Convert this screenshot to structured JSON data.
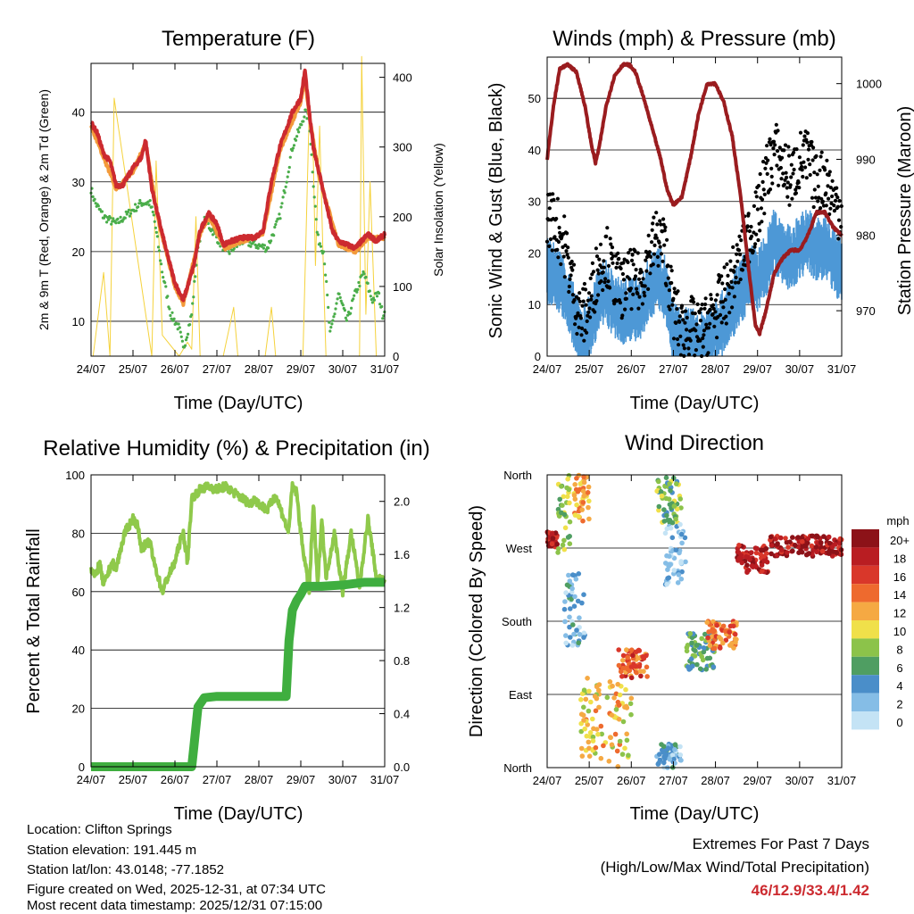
{
  "info": {
    "location": "Location: Clifton Springs",
    "elevation": "Station elevation: 191.445 m",
    "latlon": "Station lat/lon: 43.0148; -77.1852",
    "created": "Figure created on Wed, 2025-12-31, at 07:34 UTC",
    "latest": "Most recent data timestamp: 2025/12/31 07:15:00"
  },
  "extremes": {
    "heading": "Extremes For Past 7 Days",
    "subheading": "(High/Low/Max Wind/Total Precipitation)",
    "values": "46/12.9/33.4/1.42"
  },
  "colors": {
    "temp_2m": "#cc2a2f",
    "temp_9m": "#f39a3a",
    "dewpoint": "#4aad4a",
    "insolation": "#f5d23c",
    "wind": "#4d98d6",
    "gust": "#000000",
    "pressure": "#9a1c1f",
    "rh": "#8fc94b",
    "precip": "#3fae3f"
  },
  "chart_data": [
    {
      "type": "line",
      "title": "Temperature (F)",
      "xlabel": "Time (Day/UTC)",
      "ylabel": "2m & 9m T (Red, Orange) & 2m Td (Green)",
      "y2label": "Solar Insolation (Yellow)",
      "xticks": [
        "24/07",
        "25/07",
        "26/07",
        "27/07",
        "28/07",
        "29/07",
        "30/07",
        "31/07"
      ],
      "xlim": [
        0,
        7
      ],
      "ylim": [
        5,
        47
      ],
      "yticks": [
        10,
        20,
        30,
        40
      ],
      "y2lim": [
        0,
        420
      ],
      "y2ticks": [
        0,
        100,
        200,
        300,
        400
      ],
      "series": [
        {
          "name": "2m T",
          "x": [
            0,
            0.15,
            0.3,
            0.45,
            0.6,
            0.75,
            1.0,
            1.2,
            1.3,
            1.45,
            1.6,
            1.8,
            2.0,
            2.2,
            2.45,
            2.6,
            2.8,
            3.0,
            3.15,
            3.35,
            3.6,
            3.9,
            4.1,
            4.3,
            4.5,
            4.8,
            5.0,
            5.1,
            5.2,
            5.3,
            5.45,
            5.6,
            5.75,
            5.9,
            6.1,
            6.3,
            6.6,
            6.8,
            7.0
          ],
          "values": [
            38.5,
            37,
            34,
            33,
            29.5,
            29.5,
            32,
            33.5,
            36,
            29,
            25,
            20,
            15.5,
            13,
            18,
            23,
            25.5,
            24,
            21,
            21.5,
            22,
            22,
            23,
            30,
            35,
            40,
            42,
            46,
            40,
            35,
            31,
            27,
            23,
            21.5,
            21,
            20.5,
            22.5,
            21.5,
            22.5
          ]
        },
        {
          "name": "9m T",
          "x": [
            0,
            0.3,
            0.6,
            1.0,
            1.3,
            1.6,
            2.0,
            2.2,
            2.6,
            2.8,
            3.2,
            3.6,
            4.1,
            4.5,
            5.0,
            5.1,
            5.2,
            5.45,
            5.9,
            6.3,
            6.6,
            7.0
          ],
          "values": [
            38,
            33.5,
            29,
            31.5,
            35.5,
            24.5,
            15,
            12.5,
            22.5,
            25,
            20.5,
            21.5,
            22.5,
            34.5,
            41.5,
            45,
            39.5,
            30.5,
            21,
            20,
            22,
            22
          ]
        },
        {
          "name": "2m Td",
          "x": [
            0,
            0.1,
            0.3,
            0.6,
            0.8,
            1.0,
            1.2,
            1.4,
            1.5,
            1.7,
            1.9,
            2.1,
            2.2,
            2.4,
            2.55,
            2.7,
            2.9,
            3.1,
            3.3,
            3.6,
            3.9,
            4.2,
            4.5,
            4.8,
            5.0,
            5.1,
            5.2,
            5.3,
            5.4,
            5.55,
            5.7,
            5.9,
            6.1,
            6.3,
            6.5,
            6.7,
            6.85,
            6.95,
            7.0
          ],
          "values": [
            29,
            27,
            25,
            24,
            25,
            26,
            27,
            27,
            25,
            17,
            11,
            9,
            6,
            11,
            21,
            24.5,
            23,
            21,
            20,
            21.5,
            21,
            20.5,
            25,
            35,
            38,
            40,
            39,
            30,
            22,
            20,
            8,
            14,
            10,
            14,
            17,
            13,
            14,
            11,
            11.5
          ]
        }
      ],
      "insolation": {
        "x": [
          0.05,
          0.3,
          0.45,
          0.55,
          1.45,
          1.55,
          1.7,
          2.1,
          2.3,
          2.4,
          2.5,
          2.6,
          3.15,
          3.4,
          3.5,
          4.15,
          4.3,
          4.4,
          5.05,
          5.2,
          5.3,
          5.35,
          5.45,
          5.55,
          5.6,
          6.1,
          6.4,
          6.45,
          6.55,
          6.65,
          6.8
        ],
        "values": [
          0,
          120,
          0,
          370,
          0,
          280,
          30,
          0,
          20,
          10,
          200,
          0,
          0,
          70,
          0,
          0,
          70,
          0,
          0,
          350,
          280,
          130,
          330,
          100,
          0,
          0,
          0,
          430,
          60,
          250,
          0
        ]
      }
    },
    {
      "type": "scatter",
      "title": "Winds (mph) & Pressure (mb)",
      "xlabel": "Time (Day/UTC)",
      "ylabel": "Sonic Wind & Gust (Blue, Black)",
      "y2label": "Station Pressure (Maroon)",
      "xticks": [
        "24/07",
        "25/07",
        "26/07",
        "27/07",
        "28/07",
        "29/07",
        "30/07",
        "31/07"
      ],
      "xlim": [
        0,
        7
      ],
      "ylim": [
        0,
        58
      ],
      "yticks": [
        0,
        10,
        20,
        30,
        40,
        50
      ],
      "y2lim": [
        964,
        1003.5
      ],
      "y2ticks": [
        970,
        980,
        990,
        1000
      ],
      "series": [
        {
          "name": "Wind",
          "x": [
            0,
            0.2,
            0.4,
            0.6,
            0.8,
            1.0,
            1.2,
            1.4,
            1.6,
            1.8,
            2.0,
            2.2,
            2.4,
            2.6,
            2.8,
            3.0,
            3.2,
            3.4,
            3.6,
            3.8,
            4.0,
            4.2,
            4.4,
            4.6,
            4.8,
            5.0,
            5.2,
            5.4,
            5.6,
            5.8,
            6.0,
            6.2,
            6.4,
            6.6,
            6.8,
            7.0
          ],
          "values": [
            17,
            16,
            14,
            9,
            4,
            6,
            11,
            13,
            10,
            9,
            10,
            9,
            13,
            16,
            14,
            5,
            3,
            4,
            2,
            4,
            6,
            7,
            10,
            13,
            16,
            15,
            18,
            23,
            21,
            19,
            22,
            23,
            21,
            22,
            19,
            17
          ]
        },
        {
          "name": "Gust",
          "x": [
            0,
            0.2,
            0.4,
            0.6,
            0.8,
            1.0,
            1.2,
            1.4,
            1.6,
            1.8,
            2.0,
            2.2,
            2.4,
            2.6,
            2.8,
            3.0,
            3.2,
            3.4,
            3.6,
            3.8,
            4.0,
            4.2,
            4.4,
            4.6,
            4.8,
            5.0,
            5.2,
            5.4,
            5.6,
            5.8,
            6.0,
            6.2,
            6.4,
            6.6,
            6.8,
            7.0
          ],
          "values": [
            27,
            26,
            22,
            14,
            7,
            10,
            17,
            20,
            15,
            13,
            15,
            14,
            19,
            23,
            21,
            9,
            5,
            6,
            4,
            6,
            9,
            11,
            15,
            19,
            24,
            27,
            35,
            40,
            37,
            34,
            38,
            38,
            33,
            35,
            30,
            28
          ]
        },
        {
          "name": "Pressure",
          "x": [
            0,
            0.15,
            0.3,
            0.5,
            0.7,
            0.9,
            1.05,
            1.15,
            1.25,
            1.4,
            1.6,
            1.8,
            1.95,
            2.1,
            2.3,
            2.5,
            2.7,
            2.85,
            3.0,
            3.2,
            3.4,
            3.6,
            3.8,
            4.0,
            4.2,
            4.4,
            4.6,
            4.8,
            4.95,
            5.05,
            5.2,
            5.4,
            5.6,
            5.8,
            6.0,
            6.2,
            6.4,
            6.6,
            6.8,
            7.0
          ],
          "values": [
            990,
            997,
            1002,
            1002.5,
            1001.5,
            997,
            992,
            989.5,
            992,
            997,
            1001,
            1002.5,
            1002.5,
            1001.5,
            998,
            994,
            990,
            986,
            984,
            985,
            990,
            996,
            1000,
            1000,
            997.5,
            993,
            985,
            975,
            968,
            967,
            970,
            975,
            977,
            978,
            978,
            980,
            983,
            983,
            981,
            980
          ]
        }
      ]
    },
    {
      "type": "line",
      "title": "Relative Humidity (%) & Precipitation (in)",
      "xlabel": "Time (Day/UTC)",
      "ylabel": "Percent & Total Rainfall",
      "xticks": [
        "24/07",
        "25/07",
        "26/07",
        "27/07",
        "28/07",
        "29/07",
        "30/07",
        "31/07"
      ],
      "xlim": [
        0,
        7
      ],
      "ylim": [
        0,
        100
      ],
      "yticks": [
        0,
        20,
        40,
        60,
        80,
        100
      ],
      "y2lim": [
        0,
        2.2
      ],
      "y2ticks": [
        "0.0",
        "0.4",
        "0.8",
        "1.2",
        "1.6",
        "2.0"
      ],
      "series": [
        {
          "name": "RH",
          "x": [
            0,
            0.1,
            0.2,
            0.3,
            0.5,
            0.6,
            0.8,
            1.0,
            1.1,
            1.2,
            1.4,
            1.5,
            1.7,
            1.8,
            2.0,
            2.1,
            2.2,
            2.3,
            2.4,
            2.6,
            2.8,
            3.0,
            3.2,
            3.4,
            3.6,
            3.8,
            3.9,
            4.0,
            4.2,
            4.4,
            4.6,
            4.7,
            4.8,
            4.9,
            5.0,
            5.1,
            5.2,
            5.3,
            5.4,
            5.5,
            5.6,
            5.8,
            6.0,
            6.2,
            6.4,
            6.6,
            6.8,
            7.0
          ],
          "values": [
            68,
            65,
            70,
            62,
            70,
            68,
            80,
            85,
            83,
            75,
            77,
            70,
            60,
            64,
            70,
            76,
            80,
            70,
            92,
            95,
            96,
            95,
            96,
            94,
            92,
            90,
            92,
            90,
            88,
            93,
            85,
            80,
            96,
            94,
            80,
            70,
            60,
            90,
            62,
            85,
            65,
            80,
            60,
            80,
            62,
            85,
            65,
            64
          ]
        },
        {
          "name": "Precip",
          "x": [
            0,
            1.0,
            2.0,
            2.4,
            2.45,
            2.55,
            2.7,
            3.0,
            3.5,
            4.0,
            4.5,
            4.65,
            4.72,
            4.8,
            4.9,
            5.0,
            5.1,
            5.5,
            6.0,
            6.5,
            7.0
          ],
          "values": [
            0,
            0,
            0,
            0,
            0.15,
            0.45,
            0.52,
            0.53,
            0.53,
            0.53,
            0.53,
            0.53,
            0.95,
            1.18,
            1.25,
            1.3,
            1.36,
            1.36,
            1.37,
            1.39,
            1.39
          ]
        }
      ]
    },
    {
      "type": "scatter",
      "title": "Wind Direction",
      "xlabel": "Time (Day/UTC)",
      "ylabel": "Direction (Colored By Speed)",
      "xticks": [
        "24/07",
        "25/07",
        "26/07",
        "27/07",
        "28/07",
        "29/07",
        "30/07",
        "31/07"
      ],
      "xlim": [
        0,
        7
      ],
      "ylim": [
        0,
        360
      ],
      "yticks": [
        "North",
        "East",
        "South",
        "West",
        "North"
      ],
      "legend": {
        "title": "mph",
        "labels": [
          "0",
          "2",
          "4",
          "6",
          "8",
          "10",
          "12",
          "14",
          "16",
          "18",
          "20+"
        ],
        "colors": [
          "#c4e3f5",
          "#85bde6",
          "#4a8ec9",
          "#4f9e62",
          "#8cc34a",
          "#f0e04a",
          "#f5a943",
          "#ee6a2e",
          "#d9372a",
          "#b91d22",
          "#8c1218"
        ]
      },
      "clusters": [
        {
          "x_range": [
            0,
            0.25
          ],
          "dir_range": [
            270,
            290
          ],
          "speed": 18
        },
        {
          "x_range": [
            0.25,
            0.55
          ],
          "dir_range": [
            250,
            360
          ],
          "speed": 8
        },
        {
          "x_range": [
            0.6,
            1.0
          ],
          "dir_range": [
            300,
            360
          ],
          "speed": 12
        },
        {
          "x_range": [
            0.4,
            0.9
          ],
          "dir_range": [
            150,
            240
          ],
          "speed": 3
        },
        {
          "x_range": [
            0.8,
            2.0
          ],
          "dir_range": [
            0,
            110
          ],
          "speed": 11
        },
        {
          "x_range": [
            1.7,
            2.4
          ],
          "dir_range": [
            110,
            145
          ],
          "speed": 15
        },
        {
          "x_range": [
            2.6,
            3.2
          ],
          "dir_range": [
            300,
            360
          ],
          "speed": 7
        },
        {
          "x_range": [
            2.8,
            3.3
          ],
          "dir_range": [
            225,
            300
          ],
          "speed": 2
        },
        {
          "x_range": [
            2.6,
            3.2
          ],
          "dir_range": [
            0,
            30
          ],
          "speed": 3
        },
        {
          "x_range": [
            3.3,
            4.0
          ],
          "dir_range": [
            120,
            165
          ],
          "speed": 6
        },
        {
          "x_range": [
            3.8,
            4.5
          ],
          "dir_range": [
            145,
            180
          ],
          "speed": 14
        },
        {
          "x_range": [
            4.5,
            5.3
          ],
          "dir_range": [
            240,
            275
          ],
          "speed": 18
        },
        {
          "x_range": [
            5.3,
            7.0
          ],
          "dir_range": [
            260,
            285
          ],
          "speed": 19
        }
      ]
    }
  ]
}
